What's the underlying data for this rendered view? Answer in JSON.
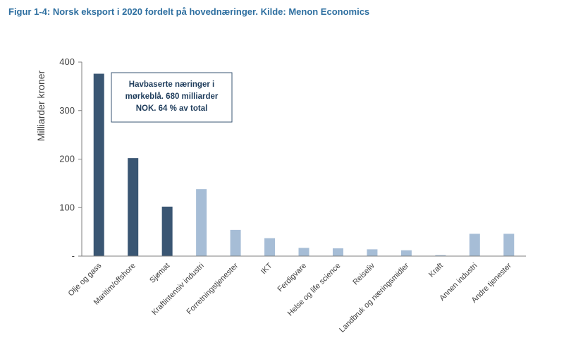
{
  "chart_data": {
    "type": "bar",
    "title": "Figur 1-4: Norsk eksport i 2020 fordelt på hovednæringer. Kilde: Menon Economics",
    "ylabel": "Milliarder kroner",
    "ylim": [
      0,
      400
    ],
    "yticks": [
      "-",
      "100",
      "200",
      "300",
      "400"
    ],
    "grid": false,
    "categories": [
      "Olje og gass",
      "Maritim/offshore",
      "Sjømat",
      "Kraftintensiv industri",
      "Forretningstjenester",
      "IKT",
      "Ferdigvare",
      "Helse og life science",
      "Reiseliv",
      "Landbruk og næringsmidler",
      "Kraft",
      "Annen industri",
      "Andre tjenester"
    ],
    "values": [
      376,
      202,
      102,
      138,
      54,
      37,
      17,
      16,
      14,
      12,
      2,
      46,
      46
    ],
    "highlight": [
      true,
      true,
      true,
      false,
      false,
      false,
      false,
      false,
      false,
      false,
      false,
      false,
      false
    ],
    "colors": {
      "highlight": "#3a5673",
      "default": "#a6bdd6"
    },
    "annotation": [
      "Havbaserte næringer i",
      "mørkeblå. 680 milliarder",
      "NOK. 64 % av total"
    ]
  }
}
